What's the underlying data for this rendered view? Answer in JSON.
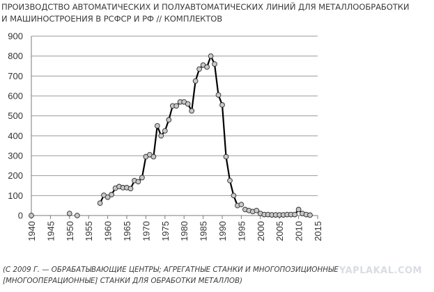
{
  "chart_data": {
    "type": "line",
    "title_lines": [
      "ПРОИЗВОДСТВО АВТОМАТИЧЕСКИХ И ПОЛУАВТОМАТИЧЕСКИХ ЛИНИЙ ДЛЯ МЕТАЛЛООБРАБОТКИ",
      "И МАШИНОСТРОЕНИЯ В РСФСР И РФ // КОМПЛЕКТОВ"
    ],
    "xlim": [
      1940,
      2015
    ],
    "ylim": [
      0,
      900
    ],
    "x_ticks": [
      "1940",
      "1945",
      "1950",
      "1955",
      "1960",
      "1965",
      "1970",
      "1975",
      "1980",
      "1985",
      "1990",
      "1995",
      "2000",
      "2005",
      "2010",
      "2015"
    ],
    "y_ticks": [
      "0",
      "100",
      "200",
      "300",
      "400",
      "500",
      "600",
      "700",
      "800",
      "900"
    ],
    "grid": "horizontal",
    "legend": "none",
    "line_color": "#000000",
    "marker_fill": "#c8c8c8",
    "segments": [
      {
        "x": [
          1940
        ],
        "y": [
          0
        ]
      },
      {
        "x": [
          1950
        ],
        "y": [
          10
        ]
      },
      {
        "x": [
          1952
        ],
        "y": [
          0
        ]
      },
      {
        "x": [
          1958,
          1959,
          1960,
          1961,
          1962,
          1963,
          1964,
          1965,
          1966,
          1967,
          1968,
          1969,
          1970,
          1971,
          1972,
          1973,
          1974,
          1975,
          1976,
          1977,
          1978,
          1979,
          1980,
          1981,
          1982,
          1983,
          1984,
          1985,
          1986,
          1987,
          1988,
          1989,
          1990,
          1991,
          1992,
          1993,
          1994,
          1995
        ],
        "y": [
          62,
          102,
          92,
          105,
          137,
          145,
          140,
          140,
          135,
          175,
          170,
          190,
          295,
          305,
          295,
          450,
          400,
          425,
          480,
          550,
          550,
          570,
          570,
          560,
          525,
          675,
          735,
          755,
          745,
          800,
          760,
          605,
          555,
          295,
          175,
          100,
          50,
          55
        ]
      },
      {
        "x": [
          1996,
          1997,
          1998,
          1999,
          2000,
          2001,
          2002,
          2003,
          2004,
          2005,
          2006,
          2007,
          2008,
          2009,
          2010,
          2011,
          2012,
          2013
        ],
        "y": [
          30,
          25,
          20,
          25,
          10,
          5,
          5,
          3,
          3,
          3,
          3,
          5,
          5,
          5,
          30,
          10,
          5,
          2
        ]
      }
    ],
    "footnote_lines": [
      "(С 2009 Г. — ОБРАБАТЫВАЮЩИЕ ЦЕНТРЫ; АГРЕГАТНЫЕ СТАНКИ И МНОГОПОЗИЦИОННЫЕ",
      "[МНОГООПЕРАЦИОННЫЕ] СТАНКИ ДЛЯ ОБРАБОТКИ МЕТАЛЛОВ)"
    ]
  },
  "watermark": "YAPLAKAL.COM"
}
